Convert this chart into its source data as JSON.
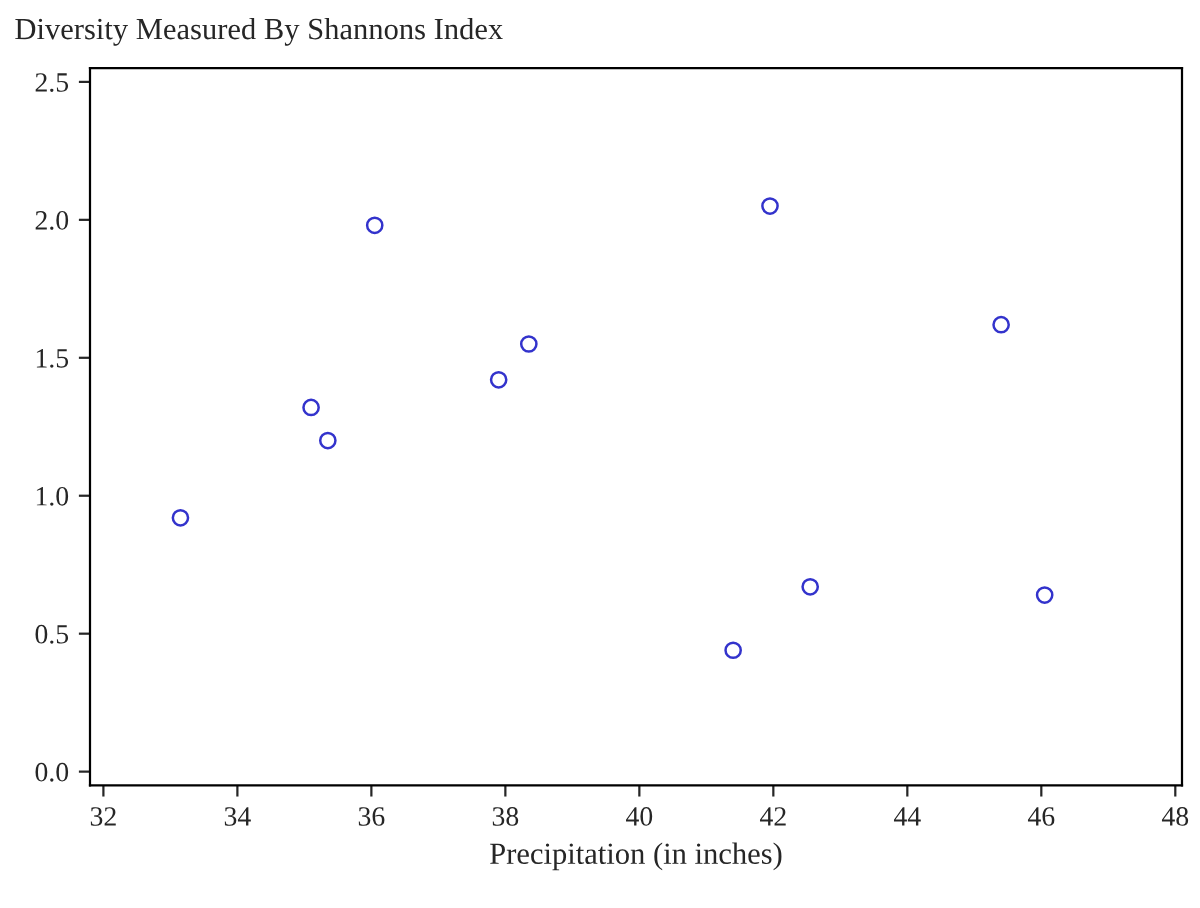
{
  "chart_data": {
    "type": "scatter",
    "title": "Diversity Measured By Shannons Index",
    "xlabel": "Precipitation (in inches)",
    "x": [
      33.15,
      35.1,
      35.35,
      36.05,
      37.9,
      38.35,
      41.4,
      41.95,
      42.55,
      45.4,
      46.05
    ],
    "values": [
      0.92,
      1.32,
      1.2,
      1.98,
      1.42,
      1.55,
      0.44,
      2.05,
      0.67,
      1.62,
      0.64
    ],
    "color": "#3333cc",
    "marker": "circle",
    "grid": false,
    "legend": false,
    "xlim": [
      31.8,
      48.1
    ],
    "xticks": [
      32,
      34,
      36,
      38,
      40,
      42,
      44,
      46,
      48
    ],
    "ylim": [
      -0.05,
      2.55
    ],
    "yticks": [
      {
        "value": 0,
        "label": "0.0"
      },
      {
        "value": 0.5,
        "label": "0.5"
      },
      {
        "value": 1,
        "label": "1.0"
      },
      {
        "value": 1.5,
        "label": "1.5"
      },
      {
        "value": 2,
        "label": "2.0"
      },
      {
        "value": 2.5,
        "label": "2.5"
      }
    ]
  }
}
